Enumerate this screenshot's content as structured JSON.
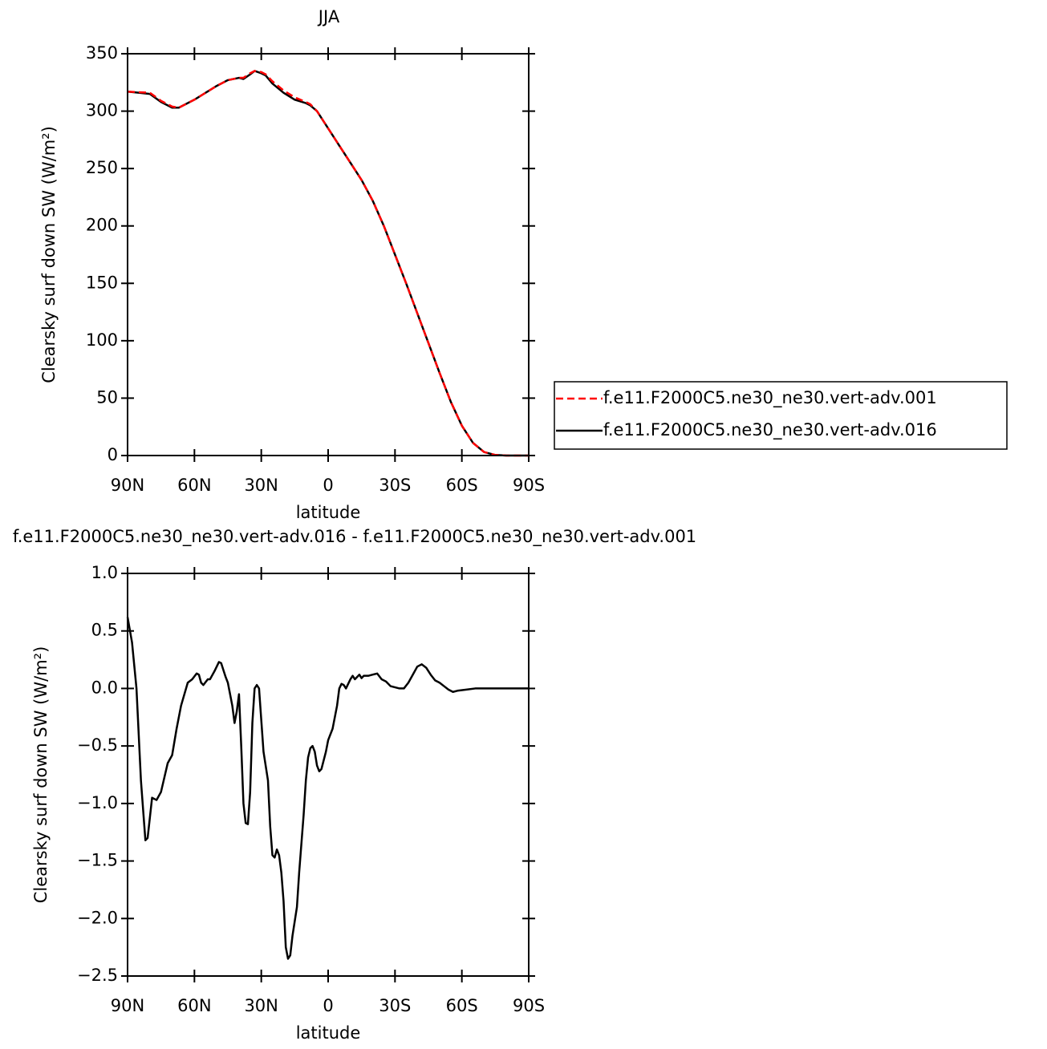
{
  "chart_data": [
    {
      "type": "line",
      "title": "JJA",
      "xlabel": "latitude",
      "ylabel": "Clearsky surf down SW (W/m²)",
      "x": [
        90,
        85,
        80,
        75,
        70,
        67,
        65,
        60,
        55,
        50,
        45,
        40,
        38,
        35,
        33,
        30,
        28,
        25,
        20,
        15,
        10,
        8,
        5,
        0,
        -5,
        -10,
        -15,
        -20,
        -25,
        -30,
        -35,
        -40,
        -45,
        -50,
        -55,
        -60,
        -65,
        -70,
        -75,
        -80,
        -85,
        -90
      ],
      "series": [
        {
          "name": "f.e11.F2000C5.ne30_ne30.vert-adv.001",
          "color": "#ff0000",
          "line_style": "dashed",
          "values": [
            317,
            316.5,
            316,
            309,
            304,
            303,
            305,
            310,
            316,
            322,
            327,
            329,
            329,
            333,
            335,
            334,
            332,
            326,
            318,
            312,
            308,
            306,
            300,
            285,
            270,
            255,
            240,
            222,
            200,
            175,
            150,
            124,
            98,
            72,
            47,
            26,
            11,
            3,
            0.5,
            0,
            0,
            0
          ]
        },
        {
          "name": "f.e11.F2000C5.ne30_ne30.vert-adv.016",
          "color": "#000000",
          "line_style": "solid",
          "values": [
            317,
            316,
            315,
            308,
            303,
            303,
            305,
            310,
            316,
            322,
            327,
            329,
            328,
            332,
            335,
            333,
            331,
            324,
            316,
            310,
            307,
            305,
            300,
            285,
            270,
            255,
            240,
            222,
            200,
            175,
            150,
            124,
            98,
            72,
            47,
            26,
            11,
            3,
            0.5,
            0,
            0,
            0
          ]
        }
      ],
      "xlim": [
        90,
        -90
      ],
      "ylim": [
        0,
        350
      ],
      "xticks": [
        {
          "value": 90,
          "label": "90N"
        },
        {
          "value": 60,
          "label": "60N"
        },
        {
          "value": 30,
          "label": "30N"
        },
        0,
        {
          "value": -30,
          "label": "30S"
        },
        {
          "value": -60,
          "label": "60S"
        },
        {
          "value": -90,
          "label": "90S"
        }
      ],
      "yticks": [
        0,
        50,
        100,
        150,
        200,
        250,
        300,
        350
      ],
      "legend": "right"
    },
    {
      "type": "line",
      "title": "f.e11.F2000C5.ne30_ne30.vert-adv.016 - f.e11.F2000C5.ne30_ne30.vert-adv.001",
      "xlabel": "latitude",
      "ylabel": "Clearsky surf down SW (W/m²)",
      "x": [
        90,
        88,
        86,
        84,
        82,
        81,
        79,
        77,
        75,
        72,
        70,
        68,
        66,
        63,
        61,
        59,
        58,
        57,
        56,
        54,
        53,
        51,
        49,
        48,
        46,
        45,
        43,
        42,
        41,
        40,
        39,
        38,
        37,
        36,
        35,
        34,
        33,
        32,
        31,
        29,
        27,
        26,
        25,
        24,
        23,
        22,
        21,
        20,
        19,
        18,
        17,
        16,
        14,
        13,
        11,
        10,
        9,
        8,
        7,
        6,
        5,
        4,
        3,
        1,
        0,
        -2,
        -4,
        -5,
        -6,
        -7,
        -8,
        -9,
        -10,
        -11,
        -12,
        -13,
        -14,
        -15,
        -16,
        -18,
        -20,
        -22,
        -24,
        -26,
        -28,
        -32,
        -34,
        -36,
        -38,
        -40,
        -42,
        -44,
        -46,
        -48,
        -50,
        -52,
        -54,
        -56,
        -58,
        -62,
        -66,
        -90
      ],
      "series": [
        {
          "color": "#000000",
          "line_style": "solid",
          "values": [
            0.62,
            0.4,
            0.0,
            -0.8,
            -1.32,
            -1.3,
            -0.95,
            -0.97,
            -0.9,
            -0.65,
            -0.58,
            -0.35,
            -0.15,
            0.05,
            0.08,
            0.13,
            0.12,
            0.05,
            0.03,
            0.08,
            0.08,
            0.15,
            0.23,
            0.22,
            0.1,
            0.05,
            -0.15,
            -0.3,
            -0.2,
            -0.05,
            -0.5,
            -1.0,
            -1.17,
            -1.18,
            -0.9,
            -0.3,
            0.0,
            0.03,
            0.0,
            -0.55,
            -0.8,
            -1.2,
            -1.45,
            -1.47,
            -1.4,
            -1.45,
            -1.6,
            -1.85,
            -2.25,
            -2.35,
            -2.32,
            -2.15,
            -1.9,
            -1.6,
            -1.1,
            -0.8,
            -0.6,
            -0.52,
            -0.5,
            -0.55,
            -0.67,
            -0.72,
            -0.7,
            -0.55,
            -0.45,
            -0.35,
            -0.15,
            0.0,
            0.04,
            0.03,
            0.0,
            0.04,
            0.08,
            0.11,
            0.08,
            0.1,
            0.12,
            0.09,
            0.11,
            0.11,
            0.12,
            0.13,
            0.08,
            0.06,
            0.02,
            0.0,
            0.0,
            0.05,
            0.12,
            0.19,
            0.21,
            0.18,
            0.12,
            0.07,
            0.05,
            0.02,
            -0.01,
            -0.03,
            -0.02,
            -0.01,
            0.0,
            0.0
          ]
        }
      ],
      "xlim": [
        90,
        -90
      ],
      "ylim": [
        -2.5,
        1.0
      ],
      "xticks": [
        {
          "value": 90,
          "label": "90N"
        },
        {
          "value": 60,
          "label": "60N"
        },
        {
          "value": 30,
          "label": "30N"
        },
        0,
        {
          "value": -30,
          "label": "30S"
        },
        {
          "value": -60,
          "label": "60S"
        },
        {
          "value": -90,
          "label": "90S"
        }
      ],
      "yticks": [
        {
          "value": -2.5,
          "label": "−2.5"
        },
        {
          "value": -2,
          "label": "−2.0"
        },
        {
          "value": -1.5,
          "label": "−1.5"
        },
        {
          "value": -1,
          "label": "−1.0"
        },
        {
          "value": -0.5,
          "label": "−0.5"
        },
        {
          "value": 0,
          "label": "0.0"
        },
        0.5,
        {
          "value": 1,
          "label": "1.0"
        }
      ]
    }
  ]
}
